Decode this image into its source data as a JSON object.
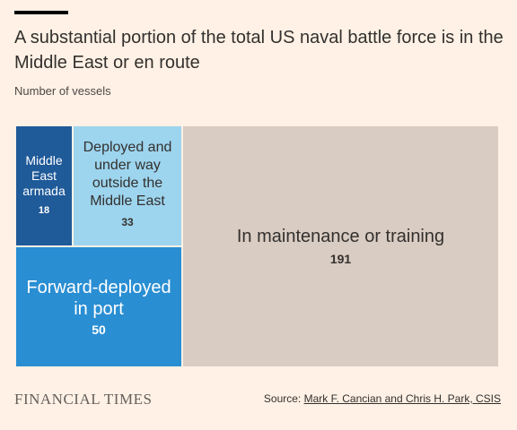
{
  "header": {
    "title": "A substantial portion of the total US naval battle force is in the Middle East or en route",
    "subtitle": "Number of vessels"
  },
  "chart_data": {
    "type": "treemap",
    "unit": "Number of vessels",
    "items": [
      {
        "label": "Middle East armada",
        "value": 18,
        "color": "#1f5a99"
      },
      {
        "label": "Deployed and under way outside the Middle East",
        "value": 33,
        "color": "#9dd4ee"
      },
      {
        "label": "Forward-deployed in port",
        "value": 50,
        "color": "#2a8ed3"
      },
      {
        "label": "In maintenance or training",
        "value": 191,
        "color": "#d9ccc2"
      }
    ]
  },
  "footer": {
    "brand": "FINANCIAL TIMES",
    "source_prefix": "Source: ",
    "source_link": "Mark F. Cancian and Chris H. Park, CSIS"
  }
}
